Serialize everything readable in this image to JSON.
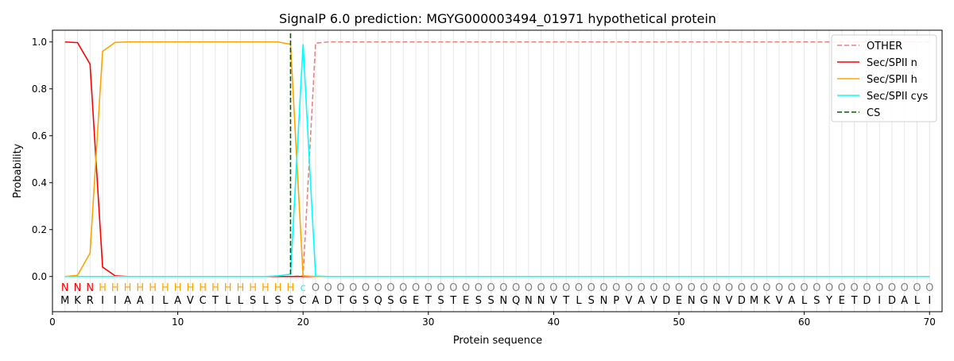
{
  "chart_data": {
    "type": "line",
    "title": "SignalP 6.0 prediction: MGYG000003494_01971 hypothetical protein",
    "xlabel": "Protein sequence",
    "ylabel": "Probability",
    "xlim": [
      0,
      71
    ],
    "ylim": [
      -0.15,
      1.05
    ],
    "xticks": [
      0,
      10,
      20,
      30,
      40,
      50,
      60,
      70
    ],
    "yticks": [
      0.0,
      0.2,
      0.4,
      0.6,
      0.8,
      1.0
    ],
    "grid": "vertical per residue",
    "legend_position": "top-right",
    "sequence": [
      "M",
      "K",
      "R",
      "I",
      "I",
      "A",
      "A",
      "I",
      "L",
      "A",
      "V",
      "C",
      "T",
      "L",
      "L",
      "S",
      "L",
      "S",
      "S",
      "C",
      "A",
      "D",
      "T",
      "G",
      "S",
      "Q",
      "S",
      "G",
      "E",
      "T",
      "S",
      "T",
      "E",
      "S",
      "S",
      "N",
      "Q",
      "N",
      "N",
      "V",
      "T",
      "L",
      "S",
      "N",
      "P",
      "V",
      "A",
      "V",
      "D",
      "E",
      "N",
      "G",
      "N",
      "V",
      "D",
      "M",
      "K",
      "V",
      "A",
      "L",
      "S",
      "Y",
      "E",
      "T",
      "D",
      "I",
      "D",
      "A",
      "L",
      "I"
    ],
    "labels": [
      "N",
      "N",
      "N",
      "H",
      "H",
      "H",
      "H",
      "H",
      "H",
      "H",
      "H",
      "H",
      "H",
      "H",
      "H",
      "H",
      "H",
      "H",
      "H",
      "c",
      "O",
      "O",
      "O",
      "O",
      "O",
      "O",
      "O",
      "O",
      "O",
      "O",
      "O",
      "O",
      "O",
      "O",
      "O",
      "O",
      "O",
      "O",
      "O",
      "O",
      "O",
      "O",
      "O",
      "O",
      "O",
      "O",
      "O",
      "O",
      "O",
      "O",
      "O",
      "O",
      "O",
      "O",
      "O",
      "O",
      "O",
      "O",
      "O",
      "O",
      "O",
      "O",
      "O",
      "O",
      "O",
      "O",
      "O",
      "O",
      "O",
      "O"
    ],
    "label_colors": {
      "N": "#ff0000",
      "H": "#ffa500",
      "c": "#00ffff",
      "O": "#808080"
    },
    "series": [
      {
        "name": "OTHER",
        "color": "#f08080",
        "dash": true,
        "values": [
          0,
          0,
          0,
          0,
          0,
          0,
          0,
          0,
          0,
          0,
          0,
          0,
          0,
          0,
          0,
          0,
          0,
          0,
          0,
          0.003,
          0.995,
          1,
          1,
          1,
          1,
          1,
          1,
          1,
          1,
          1,
          1,
          1,
          1,
          1,
          1,
          1,
          1,
          1,
          1,
          1,
          1,
          1,
          1,
          1,
          1,
          1,
          1,
          1,
          1,
          1,
          1,
          1,
          1,
          1,
          1,
          1,
          1,
          1,
          1,
          1,
          1,
          1,
          1,
          1,
          1,
          1,
          1,
          1,
          1,
          1
        ]
      },
      {
        "name": "Sec/SPII n",
        "color": "#ff0000",
        "values": [
          1.0,
          0.997,
          0.905,
          0.04,
          0.003,
          0,
          0,
          0,
          0,
          0,
          0,
          0,
          0,
          0,
          0,
          0,
          0,
          0,
          0,
          0,
          0,
          0,
          0,
          0,
          0,
          0,
          0,
          0,
          0,
          0,
          0,
          0,
          0,
          0,
          0,
          0,
          0,
          0,
          0,
          0,
          0,
          0,
          0,
          0,
          0,
          0,
          0,
          0,
          0,
          0,
          0,
          0,
          0,
          0,
          0,
          0,
          0,
          0,
          0,
          0,
          0,
          0,
          0,
          0,
          0,
          0,
          0,
          0,
          0,
          0
        ]
      },
      {
        "name": "Sec/SPII h",
        "color": "#ffa500",
        "values": [
          0,
          0.005,
          0.1,
          0.96,
          0.998,
          1,
          1,
          1,
          1,
          1,
          1,
          1,
          1,
          1,
          1,
          1,
          1,
          1,
          0.99,
          0.003,
          0,
          0,
          0,
          0,
          0,
          0,
          0,
          0,
          0,
          0,
          0,
          0,
          0,
          0,
          0,
          0,
          0,
          0,
          0,
          0,
          0,
          0,
          0,
          0,
          0,
          0,
          0,
          0,
          0,
          0,
          0,
          0,
          0,
          0,
          0,
          0,
          0,
          0,
          0,
          0,
          0,
          0,
          0,
          0,
          0,
          0,
          0,
          0,
          0,
          0
        ]
      },
      {
        "name": "Sec/SPII cys",
        "color": "#00ffff",
        "values": [
          0,
          0,
          0,
          0,
          0,
          0,
          0,
          0,
          0,
          0,
          0,
          0,
          0,
          0,
          0,
          0,
          0,
          0.003,
          0.01,
          0.99,
          0.002,
          0,
          0,
          0,
          0,
          0,
          0,
          0,
          0,
          0,
          0,
          0,
          0,
          0,
          0,
          0,
          0,
          0,
          0,
          0,
          0,
          0,
          0,
          0,
          0,
          0,
          0,
          0,
          0,
          0,
          0,
          0,
          0,
          0,
          0,
          0,
          0,
          0,
          0,
          0,
          0,
          0,
          0,
          0,
          0,
          0,
          0,
          0,
          0,
          0
        ]
      }
    ],
    "cs": {
      "name": "CS",
      "color": "#006400",
      "x": 19
    }
  }
}
